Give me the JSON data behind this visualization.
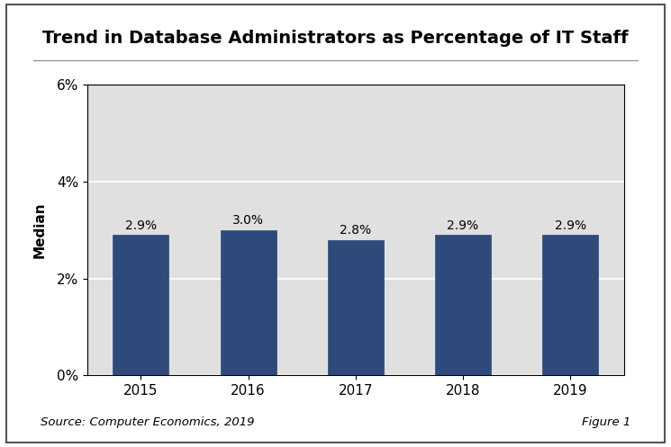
{
  "title": "Trend in Database Administrators as Percentage of IT Staff",
  "categories": [
    "2015",
    "2016",
    "2017",
    "2018",
    "2019"
  ],
  "values": [
    2.9,
    3.0,
    2.8,
    2.9,
    2.9
  ],
  "labels": [
    "2.9%",
    "3.0%",
    "2.8%",
    "2.9%",
    "2.9%"
  ],
  "bar_color": "#2E4A7A",
  "ylabel": "Median",
  "ylim": [
    0,
    6
  ],
  "yticks": [
    0,
    2,
    4,
    6
  ],
  "ytick_labels": [
    "0%",
    "2%",
    "4%",
    "6%"
  ],
  "plot_bg_color": "#E0E0E0",
  "figure_bg_color": "#FFFFFF",
  "border_color": "#000000",
  "source_text": "Source: Computer Economics, 2019",
  "figure_label": "Figure 1",
  "title_fontsize": 14,
  "axis_label_fontsize": 11,
  "tick_fontsize": 11,
  "bar_label_fontsize": 10,
  "source_fontsize": 9.5,
  "grid_color": "#FFFFFF",
  "grid_linewidth": 1.2,
  "bar_width": 0.52
}
